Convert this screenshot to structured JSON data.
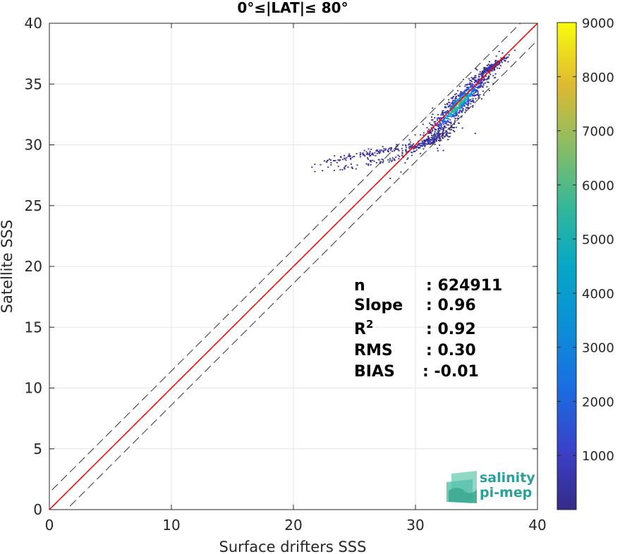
{
  "chart_data": {
    "type": "heatmap",
    "title": "0°≤|LAT|≤ 80°",
    "xlabel": "Surface drifters SSS",
    "ylabel": "Satellite SSS",
    "xlim": [
      0,
      40
    ],
    "ylim": [
      0,
      40
    ],
    "xticks": [
      "0",
      "10",
      "20",
      "30",
      "40"
    ],
    "yticks": [
      "0",
      "5",
      "10",
      "15",
      "20",
      "25",
      "30",
      "35",
      "40"
    ],
    "grid": true,
    "colorbar": {
      "min": 0,
      "max": 9000,
      "ticks": [
        "1000",
        "2000",
        "3000",
        "4000",
        "5000",
        "6000",
        "7000",
        "8000",
        "9000"
      ],
      "colormap": "parula"
    },
    "lines": [
      {
        "kind": "identity",
        "style": "solid",
        "color": "#555555",
        "slope": 1,
        "intercept": 0
      },
      {
        "kind": "identity-upper",
        "style": "dashed",
        "color": "#333333",
        "slope": 1,
        "intercept": 1.4
      },
      {
        "kind": "identity-lower",
        "style": "dashed",
        "color": "#333333",
        "slope": 1,
        "intercept": -1.4
      },
      {
        "kind": "fit",
        "style": "solid",
        "color": "#ff0000",
        "slope": 1.0,
        "intercept": 0
      },
      {
        "kind": "fit-dashed",
        "style": "dashed",
        "color": "#ff0000",
        "slope": 1.0,
        "intercept": 0
      }
    ],
    "clusters": [
      {
        "cx": 33.5,
        "cy": 33.3,
        "sx": 1.4,
        "sy": 1.5,
        "n": 900,
        "peak": 8200
      },
      {
        "cx": 36.3,
        "cy": 36.4,
        "sx": 0.6,
        "sy": 0.4,
        "n": 140,
        "peak": 1200
      },
      {
        "cx": 31.0,
        "cy": 30.2,
        "sx": 1.0,
        "sy": 0.5,
        "n": 180,
        "peak": 1100
      },
      {
        "cx": 27.0,
        "cy": 29.4,
        "sx": 2.5,
        "sy": 0.5,
        "n": 150,
        "peak": 400
      },
      {
        "cx": 27.0,
        "cy": 28.6,
        "sx": 2.0,
        "sy": 0.4,
        "n": 60,
        "peak": 300
      }
    ],
    "stats": [
      {
        "label": "n",
        "value": ": 624911"
      },
      {
        "label": "Slope",
        "value": ": 0.96"
      },
      {
        "label": "R",
        "sup": "2",
        "value": ": 0.92"
      },
      {
        "label": "RMS",
        "value": ": 0.30"
      },
      {
        "label": "BIAS",
        "value": ": -0.01"
      }
    ]
  },
  "logo": {
    "line1": "salinity",
    "line2": "pi-mep"
  }
}
